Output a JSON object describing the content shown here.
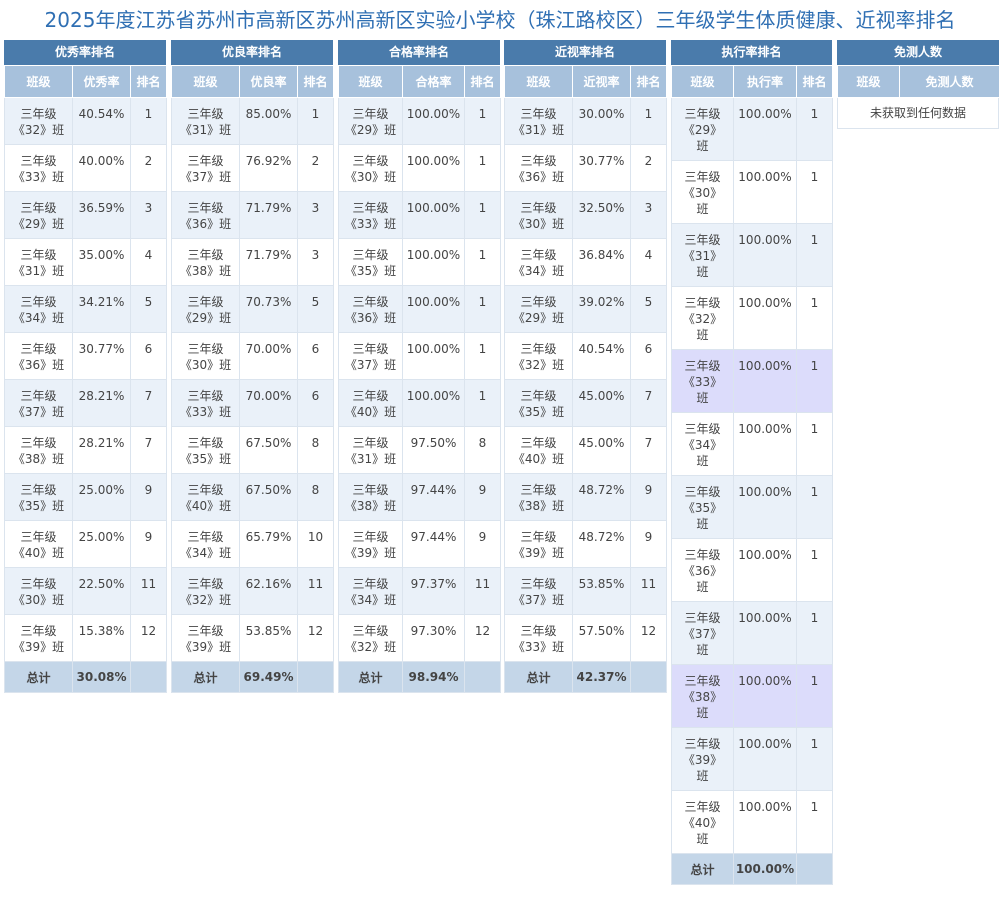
{
  "title": "2025年度江苏省苏州市高新区苏州高新区实验小学校（珠江路校区）三年级学生体质健康、近视率排名",
  "panels": [
    {
      "key": "excellent",
      "heading": "优秀率排名",
      "columns": [
        "班级",
        "优秀率",
        "排名"
      ],
      "rows": [
        {
          "cls_a": "三年级",
          "cls_b": "《32》班",
          "value": "40.54%",
          "rank": "1"
        },
        {
          "cls_a": "三年级",
          "cls_b": "《33》班",
          "value": "40.00%",
          "rank": "2"
        },
        {
          "cls_a": "三年级",
          "cls_b": "《29》班",
          "value": "36.59%",
          "rank": "3"
        },
        {
          "cls_a": "三年级",
          "cls_b": "《31》班",
          "value": "35.00%",
          "rank": "4"
        },
        {
          "cls_a": "三年级",
          "cls_b": "《34》班",
          "value": "34.21%",
          "rank": "5"
        },
        {
          "cls_a": "三年级",
          "cls_b": "《36》班",
          "value": "30.77%",
          "rank": "6"
        },
        {
          "cls_a": "三年级",
          "cls_b": "《37》班",
          "value": "28.21%",
          "rank": "7"
        },
        {
          "cls_a": "三年级",
          "cls_b": "《38》班",
          "value": "28.21%",
          "rank": "7"
        },
        {
          "cls_a": "三年级",
          "cls_b": "《35》班",
          "value": "25.00%",
          "rank": "9"
        },
        {
          "cls_a": "三年级",
          "cls_b": "《40》班",
          "value": "25.00%",
          "rank": "9"
        },
        {
          "cls_a": "三年级",
          "cls_b": "《30》班",
          "value": "22.50%",
          "rank": "11"
        },
        {
          "cls_a": "三年级",
          "cls_b": "《39》班",
          "value": "15.38%",
          "rank": "12"
        }
      ],
      "total_label": "总计",
      "total_value": "30.08%"
    },
    {
      "key": "good",
      "heading": "优良率排名",
      "columns": [
        "班级",
        "优良率",
        "排名"
      ],
      "rows": [
        {
          "cls_a": "三年级",
          "cls_b": "《31》班",
          "value": "85.00%",
          "rank": "1"
        },
        {
          "cls_a": "三年级",
          "cls_b": "《37》班",
          "value": "76.92%",
          "rank": "2"
        },
        {
          "cls_a": "三年级",
          "cls_b": "《36》班",
          "value": "71.79%",
          "rank": "3"
        },
        {
          "cls_a": "三年级",
          "cls_b": "《38》班",
          "value": "71.79%",
          "rank": "3"
        },
        {
          "cls_a": "三年级",
          "cls_b": "《29》班",
          "value": "70.73%",
          "rank": "5"
        },
        {
          "cls_a": "三年级",
          "cls_b": "《30》班",
          "value": "70.00%",
          "rank": "6"
        },
        {
          "cls_a": "三年级",
          "cls_b": "《33》班",
          "value": "70.00%",
          "rank": "6"
        },
        {
          "cls_a": "三年级",
          "cls_b": "《35》班",
          "value": "67.50%",
          "rank": "8"
        },
        {
          "cls_a": "三年级",
          "cls_b": "《40》班",
          "value": "67.50%",
          "rank": "8"
        },
        {
          "cls_a": "三年级",
          "cls_b": "《34》班",
          "value": "65.79%",
          "rank": "10"
        },
        {
          "cls_a": "三年级",
          "cls_b": "《32》班",
          "value": "62.16%",
          "rank": "11"
        },
        {
          "cls_a": "三年级",
          "cls_b": "《39》班",
          "value": "53.85%",
          "rank": "12"
        }
      ],
      "total_label": "总计",
      "total_value": "69.49%"
    },
    {
      "key": "pass",
      "heading": "合格率排名",
      "columns": [
        "班级",
        "合格率",
        "排名"
      ],
      "rows": [
        {
          "cls_a": "三年级",
          "cls_b": "《29》班",
          "value": "100.00%",
          "rank": "1"
        },
        {
          "cls_a": "三年级",
          "cls_b": "《30》班",
          "value": "100.00%",
          "rank": "1"
        },
        {
          "cls_a": "三年级",
          "cls_b": "《33》班",
          "value": "100.00%",
          "rank": "1"
        },
        {
          "cls_a": "三年级",
          "cls_b": "《35》班",
          "value": "100.00%",
          "rank": "1"
        },
        {
          "cls_a": "三年级",
          "cls_b": "《36》班",
          "value": "100.00%",
          "rank": "1"
        },
        {
          "cls_a": "三年级",
          "cls_b": "《37》班",
          "value": "100.00%",
          "rank": "1"
        },
        {
          "cls_a": "三年级",
          "cls_b": "《40》班",
          "value": "100.00%",
          "rank": "1"
        },
        {
          "cls_a": "三年级",
          "cls_b": "《31》班",
          "value": "97.50%",
          "rank": "8"
        },
        {
          "cls_a": "三年级",
          "cls_b": "《38》班",
          "value": "97.44%",
          "rank": "9"
        },
        {
          "cls_a": "三年级",
          "cls_b": "《39》班",
          "value": "97.44%",
          "rank": "9"
        },
        {
          "cls_a": "三年级",
          "cls_b": "《34》班",
          "value": "97.37%",
          "rank": "11"
        },
        {
          "cls_a": "三年级",
          "cls_b": "《32》班",
          "value": "97.30%",
          "rank": "12"
        }
      ],
      "total_label": "总计",
      "total_value": "98.94%"
    },
    {
      "key": "myopia",
      "heading": "近视率排名",
      "columns": [
        "班级",
        "近视率",
        "排名"
      ],
      "rows": [
        {
          "cls_a": "三年级",
          "cls_b": "《31》班",
          "value": "30.00%",
          "rank": "1"
        },
        {
          "cls_a": "三年级",
          "cls_b": "《36》班",
          "value": "30.77%",
          "rank": "2"
        },
        {
          "cls_a": "三年级",
          "cls_b": "《30》班",
          "value": "32.50%",
          "rank": "3"
        },
        {
          "cls_a": "三年级",
          "cls_b": "《34》班",
          "value": "36.84%",
          "rank": "4"
        },
        {
          "cls_a": "三年级",
          "cls_b": "《29》班",
          "value": "39.02%",
          "rank": "5"
        },
        {
          "cls_a": "三年级",
          "cls_b": "《32》班",
          "value": "40.54%",
          "rank": "6"
        },
        {
          "cls_a": "三年级",
          "cls_b": "《35》班",
          "value": "45.00%",
          "rank": "7"
        },
        {
          "cls_a": "三年级",
          "cls_b": "《40》班",
          "value": "45.00%",
          "rank": "7"
        },
        {
          "cls_a": "三年级",
          "cls_b": "《38》班",
          "value": "48.72%",
          "rank": "9"
        },
        {
          "cls_a": "三年级",
          "cls_b": "《39》班",
          "value": "48.72%",
          "rank": "9"
        },
        {
          "cls_a": "三年级",
          "cls_b": "《37》班",
          "value": "53.85%",
          "rank": "11"
        },
        {
          "cls_a": "三年级",
          "cls_b": "《33》班",
          "value": "57.50%",
          "rank": "12"
        }
      ],
      "total_label": "总计",
      "total_value": "42.37%"
    },
    {
      "key": "execution",
      "heading": "执行率排名",
      "columns": [
        "班级",
        "执行率",
        "排名"
      ],
      "rows": [
        {
          "cls_a": "三年级",
          "cls_b": "《29》",
          "cls_c": "班",
          "value": "100.00%",
          "rank": "1"
        },
        {
          "cls_a": "三年级",
          "cls_b": "《30》",
          "cls_c": "班",
          "value": "100.00%",
          "rank": "1"
        },
        {
          "cls_a": "三年级",
          "cls_b": "《31》",
          "cls_c": "班",
          "value": "100.00%",
          "rank": "1"
        },
        {
          "cls_a": "三年级",
          "cls_b": "《32》",
          "cls_c": "班",
          "value": "100.00%",
          "rank": "1"
        },
        {
          "cls_a": "三年级",
          "cls_b": "《33》",
          "cls_c": "班",
          "value": "100.00%",
          "rank": "1"
        },
        {
          "cls_a": "三年级",
          "cls_b": "《34》",
          "cls_c": "班",
          "value": "100.00%",
          "rank": "1"
        },
        {
          "cls_a": "三年级",
          "cls_b": "《35》",
          "cls_c": "班",
          "value": "100.00%",
          "rank": "1"
        },
        {
          "cls_a": "三年级",
          "cls_b": "《36》",
          "cls_c": "班",
          "value": "100.00%",
          "rank": "1"
        },
        {
          "cls_a": "三年级",
          "cls_b": "《37》",
          "cls_c": "班",
          "value": "100.00%",
          "rank": "1"
        },
        {
          "cls_a": "三年级",
          "cls_b": "《38》",
          "cls_c": "班",
          "value": "100.00%",
          "rank": "1"
        },
        {
          "cls_a": "三年级",
          "cls_b": "《39》",
          "cls_c": "班",
          "value": "100.00%",
          "rank": "1"
        },
        {
          "cls_a": "三年级",
          "cls_b": "《40》",
          "cls_c": "班",
          "value": "100.00%",
          "rank": "1"
        }
      ],
      "total_label": "总计",
      "total_value": "100.00%"
    }
  ],
  "exempt": {
    "heading": "免测人数",
    "columns": [
      "班级",
      "免测人数"
    ],
    "empty_text": "未获取到任何数据"
  }
}
